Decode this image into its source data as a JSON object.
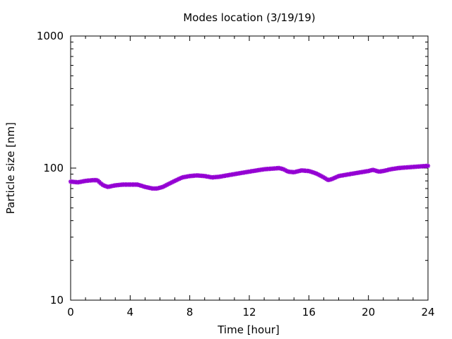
{
  "chart_data": {
    "type": "line",
    "title": "Modes location (3/19/19)",
    "xlabel": "Time [hour]",
    "ylabel": "Particle size [nm]",
    "xlim": [
      0,
      24
    ],
    "ylim": [
      10,
      1000
    ],
    "yscale": "log",
    "x_ticks": [
      0,
      4,
      8,
      12,
      16,
      20,
      24
    ],
    "x_tick_labels": [
      "0",
      "4",
      "8",
      "12",
      "16",
      "20",
      "24"
    ],
    "y_ticks": [
      10,
      100,
      1000
    ],
    "y_tick_labels": [
      "10",
      "100",
      "1000"
    ],
    "grid": false,
    "legend": "none",
    "marker": "star",
    "color": "#9400d3",
    "series": [
      {
        "points": [
          [
            0.0,
            79
          ],
          [
            0.5,
            78
          ],
          [
            1.0,
            80
          ],
          [
            1.5,
            81
          ],
          [
            1.8,
            81
          ],
          [
            2.0,
            77
          ],
          [
            2.2,
            74
          ],
          [
            2.5,
            72
          ],
          [
            3.0,
            74
          ],
          [
            3.5,
            75
          ],
          [
            4.0,
            75
          ],
          [
            4.5,
            75
          ],
          [
            5.0,
            72
          ],
          [
            5.5,
            70
          ],
          [
            5.8,
            70
          ],
          [
            6.2,
            72
          ],
          [
            6.6,
            76
          ],
          [
            7.0,
            80
          ],
          [
            7.5,
            85
          ],
          [
            8.0,
            87
          ],
          [
            8.5,
            88
          ],
          [
            9.0,
            87
          ],
          [
            9.5,
            85
          ],
          [
            10.0,
            86
          ],
          [
            10.5,
            88
          ],
          [
            11.0,
            90
          ],
          [
            11.5,
            92
          ],
          [
            12.0,
            94
          ],
          [
            12.5,
            96
          ],
          [
            13.0,
            98
          ],
          [
            13.5,
            99
          ],
          [
            14.0,
            100
          ],
          [
            14.3,
            98
          ],
          [
            14.6,
            94
          ],
          [
            15.0,
            93
          ],
          [
            15.5,
            96
          ],
          [
            16.0,
            95
          ],
          [
            16.5,
            91
          ],
          [
            17.0,
            85
          ],
          [
            17.3,
            81
          ],
          [
            17.6,
            83
          ],
          [
            18.0,
            87
          ],
          [
            18.5,
            89
          ],
          [
            19.0,
            91
          ],
          [
            19.5,
            93
          ],
          [
            20.0,
            95
          ],
          [
            20.3,
            97
          ],
          [
            20.7,
            94
          ],
          [
            21.0,
            95
          ],
          [
            21.5,
            98
          ],
          [
            22.0,
            100
          ],
          [
            22.5,
            101
          ],
          [
            23.0,
            102
          ],
          [
            23.5,
            103
          ],
          [
            24.0,
            104
          ]
        ]
      }
    ]
  }
}
